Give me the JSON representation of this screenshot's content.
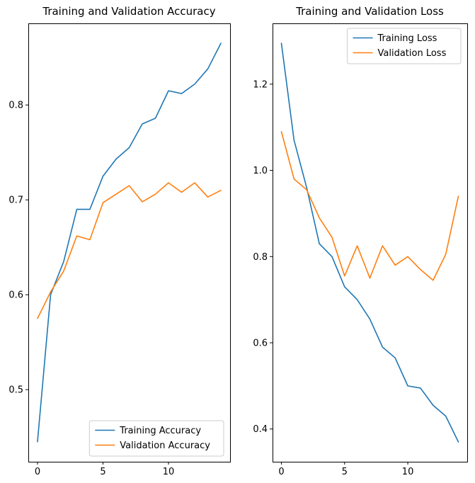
{
  "figure": {
    "background": "#ffffff"
  },
  "chart_data": [
    {
      "name": "accuracy",
      "type": "line",
      "title": "Training and Validation Accuracy",
      "xlabel": "",
      "ylabel": "",
      "x": [
        0,
        1,
        2,
        3,
        4,
        5,
        6,
        7,
        8,
        9,
        10,
        11,
        12,
        13,
        14
      ],
      "series": [
        {
          "name": "Training Accuracy",
          "color": "#1f77b4",
          "values": [
            0.445,
            0.6,
            0.635,
            0.69,
            0.69,
            0.725,
            0.743,
            0.755,
            0.78,
            0.786,
            0.815,
            0.812,
            0.822,
            0.838,
            0.865
          ]
        },
        {
          "name": "Validation Accuracy",
          "color": "#ff7f0e",
          "values": [
            0.575,
            0.603,
            0.625,
            0.662,
            0.658,
            0.697,
            0.706,
            0.715,
            0.698,
            0.706,
            0.718,
            0.708,
            0.718,
            0.703,
            0.71
          ]
        }
      ],
      "xlim": [
        -0.7,
        14.7
      ],
      "ylim": [
        0.424,
        0.886
      ],
      "xticks": {
        "pos": [
          0,
          5,
          10
        ],
        "labels": [
          "0",
          "5",
          "10"
        ]
      },
      "yticks": {
        "pos": [
          0.5,
          0.6,
          0.7,
          0.8
        ],
        "labels": [
          "0.5",
          "0.6",
          "0.7",
          "0.8"
        ]
      },
      "legend": "lower right",
      "grid": false
    },
    {
      "name": "loss",
      "type": "line",
      "title": "Training and Validation Loss",
      "xlabel": "",
      "ylabel": "",
      "x": [
        0,
        1,
        2,
        3,
        4,
        5,
        6,
        7,
        8,
        9,
        10,
        11,
        12,
        13,
        14
      ],
      "series": [
        {
          "name": "Training Loss",
          "color": "#1f77b4",
          "values": [
            1.295,
            1.07,
            0.96,
            0.83,
            0.8,
            0.73,
            0.7,
            0.655,
            0.59,
            0.565,
            0.5,
            0.495,
            0.455,
            0.43,
            0.37
          ]
        },
        {
          "name": "Validation Loss",
          "color": "#ff7f0e",
          "values": [
            1.09,
            0.98,
            0.955,
            0.89,
            0.845,
            0.755,
            0.825,
            0.75,
            0.825,
            0.78,
            0.8,
            0.77,
            0.745,
            0.805,
            0.94
          ]
        }
      ],
      "xlim": [
        -0.7,
        14.7
      ],
      "ylim": [
        0.324,
        1.341
      ],
      "xticks": {
        "pos": [
          0,
          5,
          10
        ],
        "labels": [
          "0",
          "5",
          "10"
        ]
      },
      "yticks": {
        "pos": [
          0.4,
          0.6,
          0.8,
          1.0,
          1.2
        ],
        "labels": [
          "0.4",
          "0.6",
          "0.8",
          "1.0",
          "1.2"
        ]
      },
      "legend": "upper right",
      "grid": false
    }
  ]
}
